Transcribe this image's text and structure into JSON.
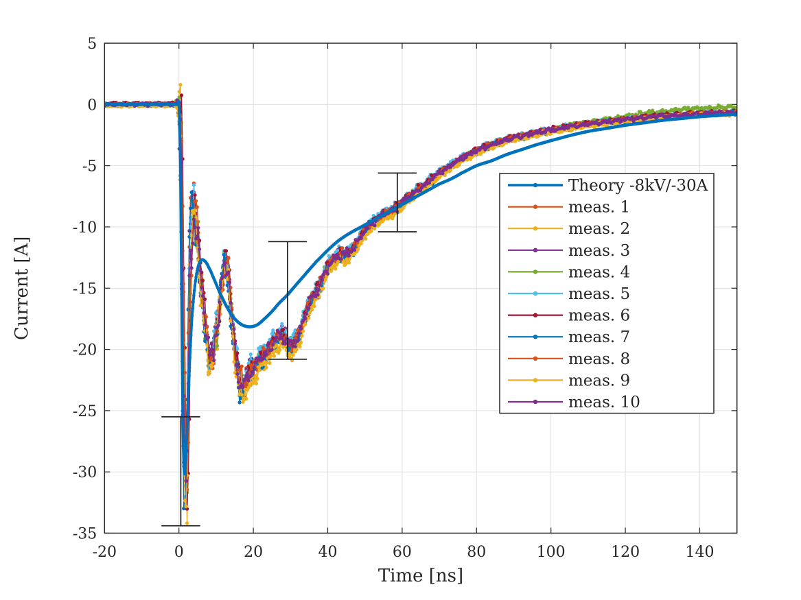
{
  "figure": {
    "background": "#ffffff",
    "axis_color": "#262626",
    "grid_color": "#e0e0e0"
  },
  "chart_data": {
    "type": "line",
    "title": "",
    "xlabel": "Time [ns]",
    "ylabel": "Current [A]",
    "xlim": [
      -20,
      150
    ],
    "ylim": [
      -35,
      5
    ],
    "xticks": [
      -20,
      0,
      20,
      40,
      60,
      80,
      100,
      120,
      140
    ],
    "yticks": [
      5,
      0,
      -5,
      -10,
      -15,
      -20,
      -25,
      -30,
      -35
    ],
    "grid": true,
    "legend_position": "right-middle",
    "series": [
      {
        "name": "Theory -8kV/-30A",
        "color": "#0072BD",
        "role": "theory"
      },
      {
        "name": "meas. 1",
        "color": "#D95319",
        "role": "measured",
        "seed": 101,
        "offset": 0.1,
        "xphase": 0.12,
        "scale": 1.005,
        "tail_lift": 0
      },
      {
        "name": "meas. 2",
        "color": "#EDB120",
        "role": "measured",
        "seed": 202,
        "offset": -0.3,
        "xphase": -0.2,
        "scale": 1.02,
        "tail_lift": 0
      },
      {
        "name": "meas. 3",
        "color": "#7E2F8E",
        "role": "measured",
        "seed": 303,
        "offset": 0.05,
        "xphase": 0.22,
        "scale": 0.99,
        "tail_lift": 0
      },
      {
        "name": "meas. 4",
        "color": "#77AC30",
        "role": "measured",
        "seed": 404,
        "offset": 0.0,
        "xphase": -0.1,
        "scale": 1.0,
        "tail_lift": 0.45
      },
      {
        "name": "meas. 5",
        "color": "#4DBEEE",
        "role": "measured",
        "seed": 505,
        "offset": 0.2,
        "xphase": 0.05,
        "scale": 0.985,
        "tail_lift": 0
      },
      {
        "name": "meas. 6",
        "color": "#A2142F",
        "role": "measured",
        "seed": 606,
        "offset": 0.3,
        "xphase": -0.25,
        "scale": 1.01,
        "tail_lift": 0
      },
      {
        "name": "meas. 7",
        "color": "#0072BD",
        "role": "measured",
        "seed": 707,
        "offset": -0.1,
        "xphase": 0.18,
        "scale": 1.015,
        "tail_lift": 0
      },
      {
        "name": "meas. 8",
        "color": "#D95319",
        "role": "measured",
        "seed": 808,
        "offset": -0.05,
        "xphase": -0.15,
        "scale": 0.995,
        "tail_lift": 0
      },
      {
        "name": "meas. 9",
        "color": "#EDB120",
        "role": "measured",
        "seed": 909,
        "offset": -0.35,
        "xphase": 0.08,
        "scale": 1.025,
        "tail_lift": 0
      },
      {
        "name": "meas. 10",
        "color": "#7E2F8E",
        "role": "measured",
        "seed": 1010,
        "offset": 0.0,
        "xphase": -0.05,
        "scale": 1.0,
        "tail_lift": 0
      }
    ],
    "theory_points": [
      [
        -20,
        0
      ],
      [
        -10,
        0
      ],
      [
        -5,
        0
      ],
      [
        -2,
        0
      ],
      [
        -1,
        0
      ],
      [
        -0.5,
        0
      ],
      [
        -0.2,
        0
      ],
      [
        0,
        0
      ],
      [
        0.3,
        -3.5
      ],
      [
        0.6,
        -12
      ],
      [
        0.9,
        -22.5
      ],
      [
        1.2,
        -28.6
      ],
      [
        1.5,
        -30.2
      ],
      [
        1.8,
        -29.3
      ],
      [
        2.2,
        -26.5
      ],
      [
        2.6,
        -23.3
      ],
      [
        3,
        -20.3
      ],
      [
        3.5,
        -17.5
      ],
      [
        4,
        -15.6
      ],
      [
        4.6,
        -14.1
      ],
      [
        5.2,
        -13.2
      ],
      [
        6,
        -12.7
      ],
      [
        7,
        -12.8
      ],
      [
        8,
        -13.3
      ],
      [
        9.5,
        -14.3
      ],
      [
        11,
        -15.4
      ],
      [
        13,
        -16.6
      ],
      [
        15,
        -17.5
      ],
      [
        17,
        -18
      ],
      [
        19,
        -18.15
      ],
      [
        21,
        -18
      ],
      [
        23,
        -17.5
      ],
      [
        25,
        -16.9
      ],
      [
        27,
        -16.2
      ],
      [
        29,
        -15.6
      ],
      [
        31,
        -14.9
      ],
      [
        33,
        -14.2
      ],
      [
        35,
        -13.5
      ],
      [
        37,
        -12.8
      ],
      [
        40,
        -11.9
      ],
      [
        43,
        -11.1
      ],
      [
        46,
        -10.5
      ],
      [
        49,
        -10
      ],
      [
        52,
        -9.5
      ],
      [
        55,
        -9
      ],
      [
        58,
        -8.5
      ],
      [
        61,
        -8
      ],
      [
        64,
        -7.5
      ],
      [
        67,
        -7
      ],
      [
        70,
        -6.5
      ],
      [
        73,
        -6.1
      ],
      [
        76,
        -5.6
      ],
      [
        80,
        -5
      ],
      [
        84,
        -4.6
      ],
      [
        88,
        -4.1
      ],
      [
        92,
        -3.7
      ],
      [
        96,
        -3.3
      ],
      [
        100,
        -2.95
      ],
      [
        105,
        -2.55
      ],
      [
        110,
        -2.2
      ],
      [
        115,
        -1.95
      ],
      [
        120,
        -1.7
      ],
      [
        125,
        -1.5
      ],
      [
        130,
        -1.3
      ],
      [
        135,
        -1.15
      ],
      [
        140,
        -1
      ],
      [
        145,
        -0.9
      ],
      [
        150,
        -0.8
      ]
    ],
    "measured_mean_points": [
      [
        -20,
        0
      ],
      [
        -10,
        0
      ],
      [
        -5,
        0
      ],
      [
        -2,
        0
      ],
      [
        -1,
        0
      ],
      [
        -0.5,
        0
      ],
      [
        -0.1,
        0
      ],
      [
        0.3,
        -1.2
      ],
      [
        0.6,
        -5
      ],
      [
        0.9,
        -12
      ],
      [
        1.2,
        -21
      ],
      [
        1.5,
        -28
      ],
      [
        1.8,
        -31.3
      ],
      [
        2.1,
        -29
      ],
      [
        2.4,
        -24
      ],
      [
        2.7,
        -18
      ],
      [
        3,
        -13
      ],
      [
        3.4,
        -10.2
      ],
      [
        3.8,
        -9.2
      ],
      [
        4.3,
        -9
      ],
      [
        4.8,
        -10
      ],
      [
        5.3,
        -11.8
      ],
      [
        5.9,
        -14.2
      ],
      [
        6.5,
        -16.5
      ],
      [
        7.2,
        -18.6
      ],
      [
        8,
        -20.2
      ],
      [
        8.7,
        -20.6
      ],
      [
        9.4,
        -19.8
      ],
      [
        10.2,
        -18.2
      ],
      [
        11,
        -15.9
      ],
      [
        11.7,
        -13.9
      ],
      [
        12.3,
        -12.8
      ],
      [
        12.9,
        -13.2
      ],
      [
        13.6,
        -15
      ],
      [
        14.3,
        -17.5
      ],
      [
        15,
        -20
      ],
      [
        15.8,
        -21.9
      ],
      [
        16.6,
        -22.7
      ],
      [
        17.4,
        -22.8
      ],
      [
        18.2,
        -22.4
      ],
      [
        19.2,
        -21.8
      ],
      [
        20.5,
        -21.3
      ],
      [
        22,
        -20.7
      ],
      [
        23.5,
        -20.2
      ],
      [
        25,
        -19.6
      ],
      [
        26.5,
        -19
      ],
      [
        27.5,
        -18.9
      ],
      [
        28.5,
        -19.1
      ],
      [
        29.5,
        -19.5
      ],
      [
        30.5,
        -19.6
      ],
      [
        31.5,
        -19.2
      ],
      [
        32.5,
        -18.5
      ],
      [
        34,
        -17.2
      ],
      [
        35.5,
        -15.9
      ],
      [
        36.5,
        -15.5
      ],
      [
        37.5,
        -15
      ],
      [
        39,
        -13.9
      ],
      [
        40.5,
        -13
      ],
      [
        42,
        -12.5
      ],
      [
        43.5,
        -12.3
      ],
      [
        45,
        -12.2
      ],
      [
        46.5,
        -11.9
      ],
      [
        48,
        -11.2
      ],
      [
        49.5,
        -10.5
      ],
      [
        51,
        -9.9
      ],
      [
        52.5,
        -9.6
      ],
      [
        54,
        -9.2
      ],
      [
        55.5,
        -8.9
      ],
      [
        57,
        -8.7
      ],
      [
        58.5,
        -8.4
      ],
      [
        60,
        -8
      ],
      [
        62,
        -7.5
      ],
      [
        64,
        -7
      ],
      [
        66,
        -6.6
      ],
      [
        68,
        -6.1
      ],
      [
        70,
        -5.6
      ],
      [
        72,
        -5.2
      ],
      [
        74,
        -4.8
      ],
      [
        76,
        -4.4
      ],
      [
        78,
        -4.1
      ],
      [
        80,
        -3.8
      ],
      [
        83,
        -3.4
      ],
      [
        86,
        -3.1
      ],
      [
        89,
        -2.8
      ],
      [
        92,
        -2.6
      ],
      [
        95,
        -2.4
      ],
      [
        98,
        -2.2
      ],
      [
        101,
        -2.05
      ],
      [
        104,
        -1.9
      ],
      [
        107,
        -1.75
      ],
      [
        110,
        -1.6
      ],
      [
        113,
        -1.5
      ],
      [
        116,
        -1.4
      ],
      [
        120,
        -1.25
      ],
      [
        124,
        -1.1
      ],
      [
        128,
        -1
      ],
      [
        132,
        -0.92
      ],
      [
        136,
        -0.85
      ],
      [
        140,
        -0.78
      ],
      [
        144,
        -0.72
      ],
      [
        148,
        -0.68
      ],
      [
        150,
        -0.65
      ]
    ],
    "noise_amp_points": [
      [
        -20,
        0.1
      ],
      [
        -1,
        0.1
      ],
      [
        0,
        0.8
      ],
      [
        0.8,
        2.6
      ],
      [
        1.5,
        3.2
      ],
      [
        3.5,
        3.2
      ],
      [
        4.5,
        1.8
      ],
      [
        6,
        1.2
      ],
      [
        17,
        1.0
      ],
      [
        20,
        0.7
      ],
      [
        24,
        0.5
      ],
      [
        40,
        0.42
      ],
      [
        50,
        0.3
      ],
      [
        65,
        0.22
      ],
      [
        90,
        0.16
      ],
      [
        150,
        0.14
      ]
    ],
    "error_bars": [
      {
        "t": 0.5,
        "top": -25.5,
        "bottom": -34.4,
        "cap_half_ns": 5.2
      },
      {
        "t": 29.2,
        "top": -11.2,
        "bottom": -20.8,
        "cap_half_ns": 5.2
      },
      {
        "t": 58.7,
        "top": -5.6,
        "bottom": -10.4,
        "cap_half_ns": 5.2
      }
    ]
  }
}
